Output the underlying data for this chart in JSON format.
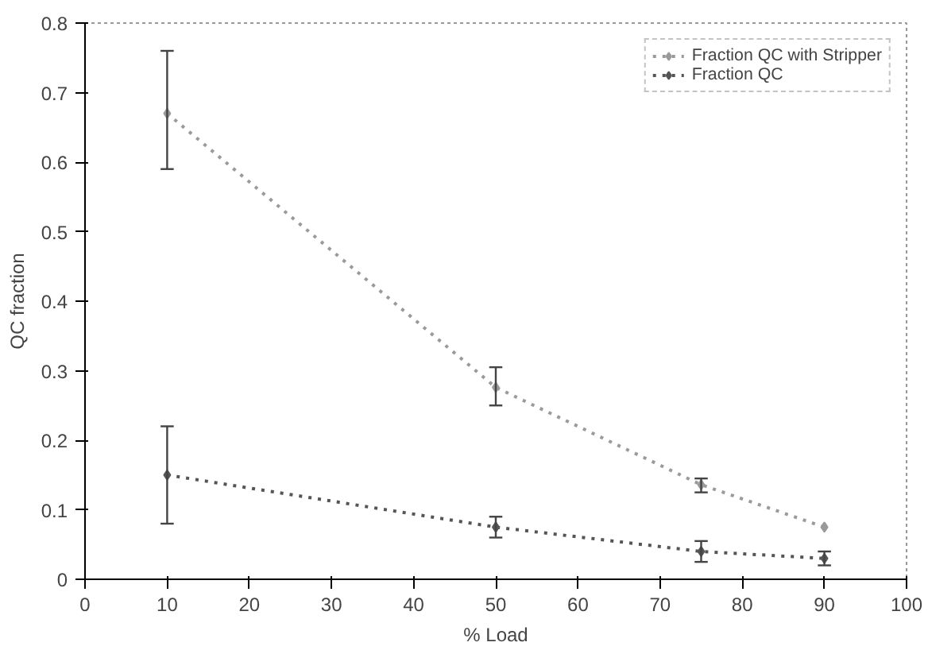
{
  "chart_data": {
    "type": "line",
    "xlabel": "% Load",
    "ylabel": "QC fraction",
    "x": [
      10,
      50,
      75,
      90
    ],
    "series": [
      {
        "name": "Fraction QC with Stripper",
        "color": "#9a9a9a",
        "values": [
          0.67,
          0.276,
          0.136,
          0.075
        ],
        "errors": [
          [
            0.59,
            0.76
          ],
          [
            0.25,
            0.305
          ],
          [
            0.125,
            0.145
          ],
          null
        ]
      },
      {
        "name": "Fraction QC",
        "color": "#555555",
        "values": [
          0.15,
          0.075,
          0.04,
          0.03
        ],
        "errors": [
          [
            0.08,
            0.22
          ],
          [
            0.06,
            0.09
          ],
          [
            0.025,
            0.055
          ],
          [
            0.02,
            0.04
          ]
        ]
      }
    ],
    "xlim": [
      0,
      100
    ],
    "xticks": [
      0,
      10,
      20,
      30,
      40,
      50,
      60,
      70,
      80,
      90,
      100
    ],
    "ylim": [
      0,
      0.8
    ],
    "yticks": [
      0,
      0.1,
      0.2,
      0.3,
      0.4,
      0.5,
      0.6,
      0.7,
      0.8
    ],
    "legend": "top right",
    "grid": false,
    "marker": "diamond",
    "line_style": "dotted"
  }
}
